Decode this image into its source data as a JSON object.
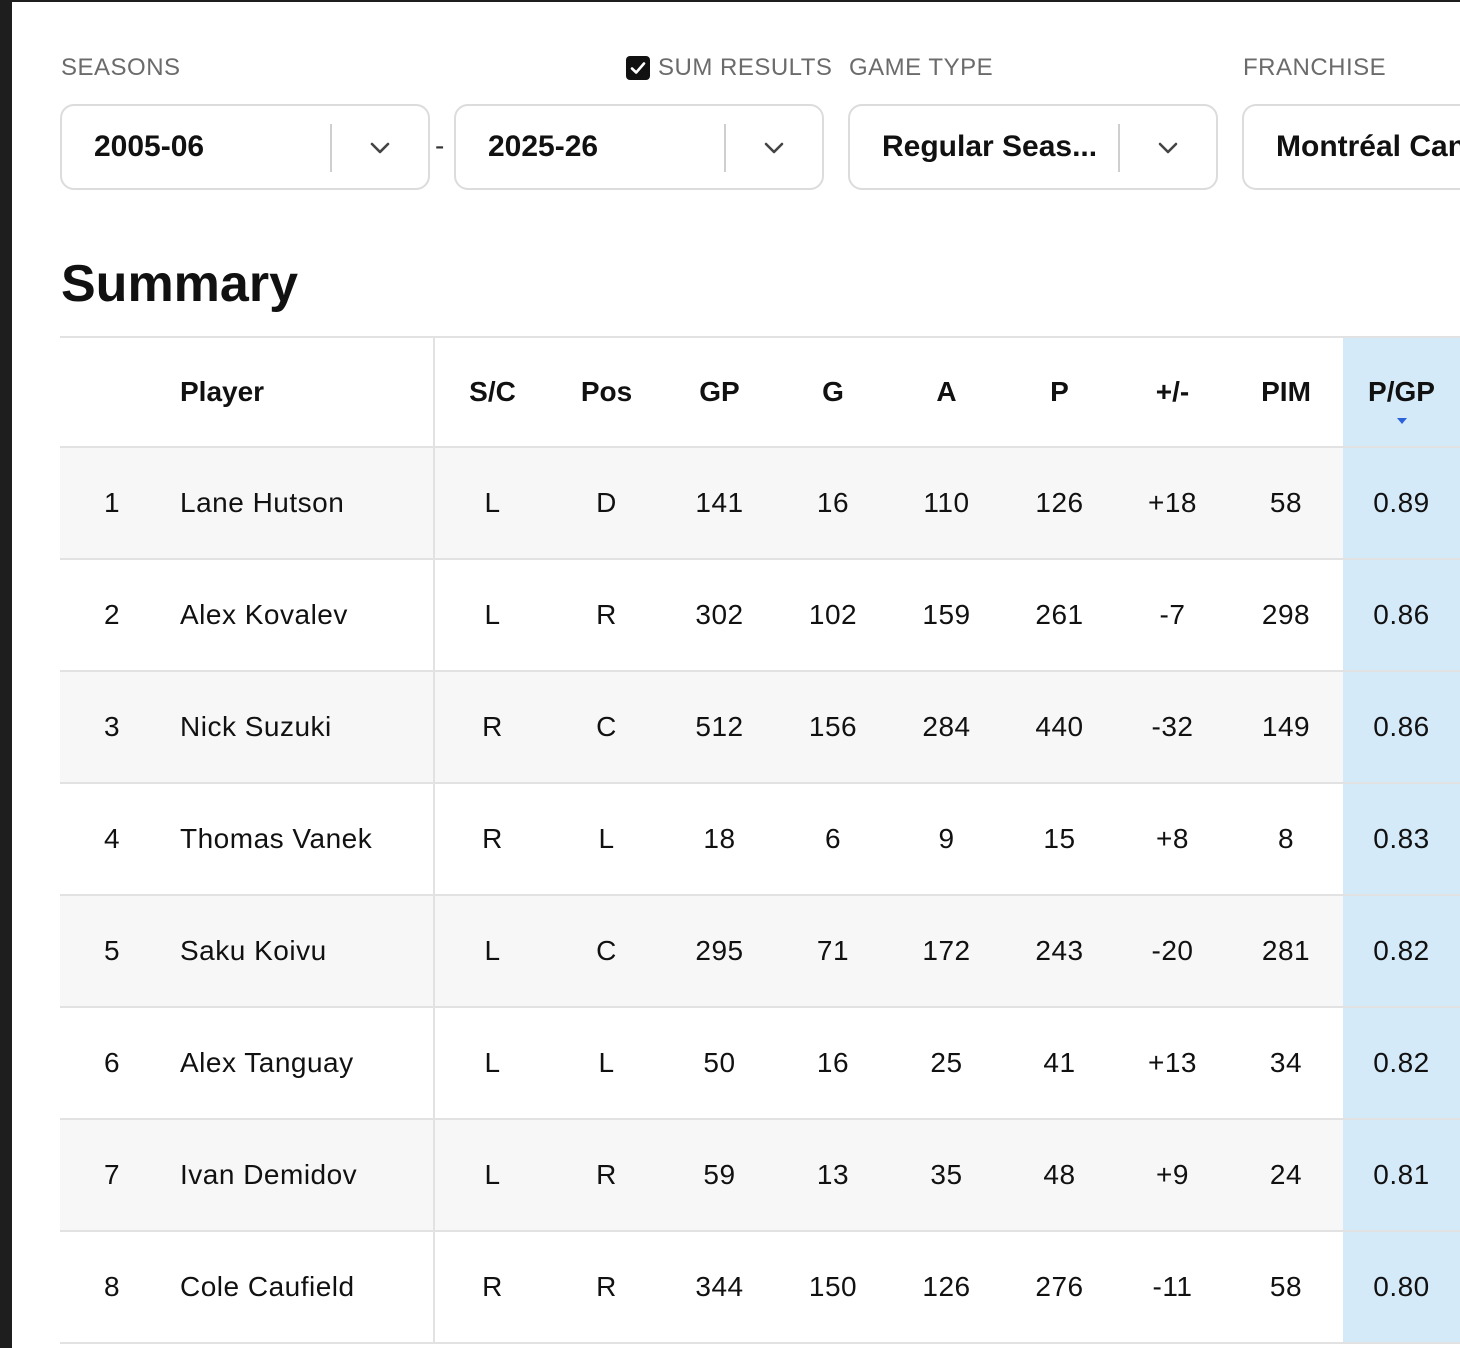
{
  "filters": {
    "seasons_label": "SEASONS",
    "sum_results_label": "SUM RESULTS",
    "sum_results_checked": true,
    "game_type_label": "GAME TYPE",
    "franchise_label": "FRANCHISE",
    "season_from": "2005-06",
    "season_separator": "-",
    "season_to": "2025-26",
    "game_type": "Regular Seas...",
    "franchise": "Montréal Can"
  },
  "summary": {
    "title": "Summary",
    "columns": [
      "",
      "Player",
      "S/C",
      "Pos",
      "GP",
      "G",
      "A",
      "P",
      "+/-",
      "PIM",
      "P/GP"
    ],
    "sorted_column": "P/GP",
    "sort_direction": "descending",
    "rows": [
      [
        "1",
        "Lane Hutson",
        "L",
        "D",
        "141",
        "16",
        "110",
        "126",
        "+18",
        "58",
        "0.89"
      ],
      [
        "2",
        "Alex Kovalev",
        "L",
        "R",
        "302",
        "102",
        "159",
        "261",
        "-7",
        "298",
        "0.86"
      ],
      [
        "3",
        "Nick Suzuki",
        "R",
        "C",
        "512",
        "156",
        "284",
        "440",
        "-32",
        "149",
        "0.86"
      ],
      [
        "4",
        "Thomas Vanek",
        "R",
        "L",
        "18",
        "6",
        "9",
        "15",
        "+8",
        "8",
        "0.83"
      ],
      [
        "5",
        "Saku Koivu",
        "L",
        "C",
        "295",
        "71",
        "172",
        "243",
        "-20",
        "281",
        "0.82"
      ],
      [
        "6",
        "Alex Tanguay",
        "L",
        "L",
        "50",
        "16",
        "25",
        "41",
        "+13",
        "34",
        "0.82"
      ],
      [
        "7",
        "Ivan Demidov",
        "L",
        "R",
        "59",
        "13",
        "35",
        "48",
        "+9",
        "24",
        "0.81"
      ],
      [
        "8",
        "Cole Caufield",
        "R",
        "R",
        "344",
        "150",
        "126",
        "276",
        "-11",
        "58",
        "0.80"
      ]
    ]
  },
  "icons": {
    "dropdown": "chevron-down-icon",
    "checkbox": "checkmark-icon",
    "sort": "sort-descending-icon"
  },
  "colors": {
    "sorted_column_bg": "#d5eaf8",
    "sort_arrow": "#2a62d9",
    "odd_row_bg": "#f7f7f7"
  }
}
